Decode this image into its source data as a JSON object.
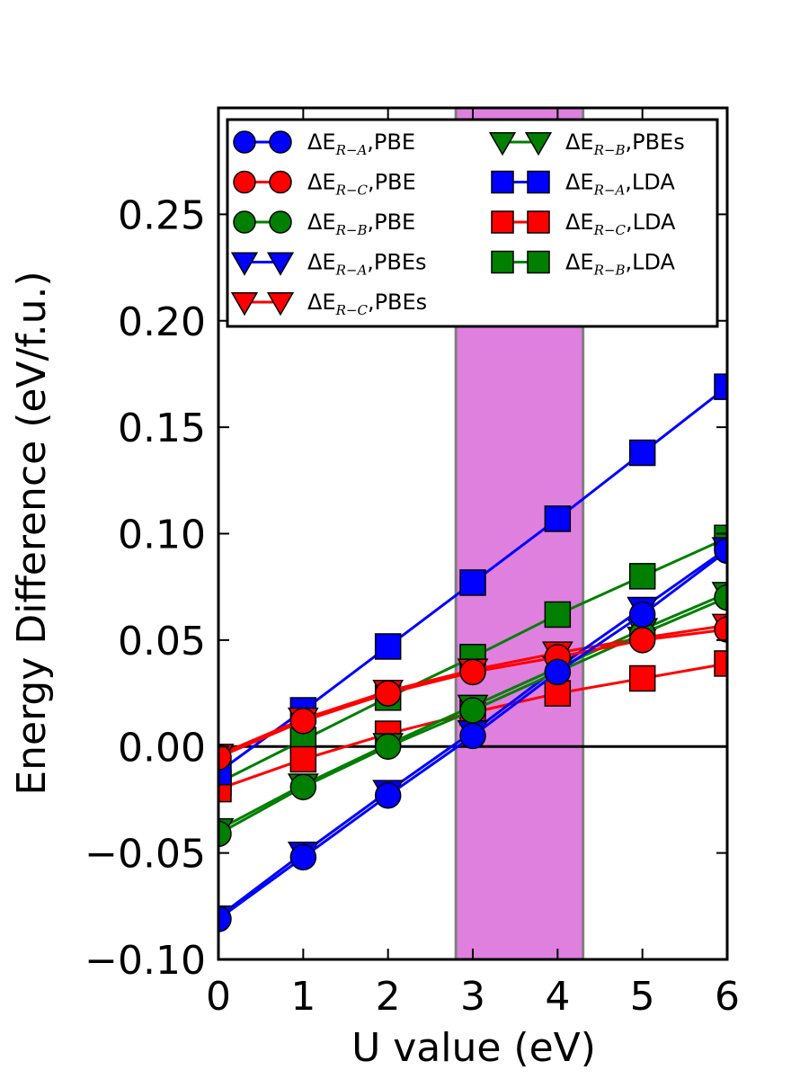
{
  "chart_data": {
    "type": "line",
    "title": "",
    "xlabel": "U value (eV)",
    "ylabel": "Energy Difference (eV/f.u.)",
    "xlim": [
      0,
      6
    ],
    "ylim": [
      -0.1,
      0.3
    ],
    "x_ticks": [
      "0",
      "1",
      "2",
      "3",
      "4",
      "5",
      "6"
    ],
    "y_ticks": [
      "−0.10",
      "−0.05",
      "0.00",
      "0.05",
      "0.10",
      "0.15",
      "0.20",
      "0.25"
    ],
    "grid": false,
    "legend_placement": "top",
    "highlight_band": {
      "x_range": [
        2.8,
        4.3
      ],
      "color": "#df80df"
    },
    "zero_line": true,
    "x": [
      0,
      1,
      2,
      3,
      4,
      5,
      6
    ],
    "series": [
      {
        "prefix": "ΔE",
        "subscript": "R−A",
        "suffix": ",PBE",
        "color": "#0000ff",
        "marker": "circle",
        "values": [
          -0.081,
          -0.052,
          -0.023,
          0.005,
          0.035,
          0.062,
          0.092
        ]
      },
      {
        "prefix": "ΔE",
        "subscript": "R−C",
        "suffix": ",PBE",
        "color": "#ff0000",
        "marker": "circle",
        "values": [
          -0.005,
          0.012,
          0.025,
          0.035,
          0.042,
          0.05,
          0.055
        ]
      },
      {
        "prefix": "ΔE",
        "subscript": "R−B",
        "suffix": ",PBE",
        "color": "#007f00",
        "marker": "circle",
        "values": [
          -0.041,
          -0.019,
          0.0,
          0.017,
          0.035,
          0.053,
          0.07
        ]
      },
      {
        "prefix": "ΔE",
        "subscript": "R−A",
        "suffix": ",PBEs",
        "color": "#0000ff",
        "marker": "triangle-down",
        "values": [
          -0.08,
          -0.05,
          -0.021,
          0.007,
          0.037,
          0.065,
          0.093
        ]
      },
      {
        "prefix": "ΔE",
        "subscript": "R−C",
        "suffix": ",PBEs",
        "color": "#ff0000",
        "marker": "triangle-down",
        "values": [
          -0.004,
          0.013,
          0.026,
          0.036,
          0.044,
          0.051,
          0.057
        ]
      },
      {
        "prefix": "ΔE",
        "subscript": "R−B",
        "suffix": ",PBEs",
        "color": "#007f00",
        "marker": "triangle-down",
        "values": [
          -0.039,
          -0.018,
          0.001,
          0.019,
          0.037,
          0.055,
          0.072
        ]
      },
      {
        "prefix": "ΔE",
        "subscript": "R−A",
        "suffix": ",LDA",
        "color": "#0000ff",
        "marker": "square",
        "values": [
          -0.012,
          0.017,
          0.047,
          0.077,
          0.107,
          0.138,
          0.169
        ]
      },
      {
        "prefix": "ΔE",
        "subscript": "R−C",
        "suffix": ",LDA",
        "color": "#ff0000",
        "marker": "square",
        "values": [
          -0.02,
          -0.006,
          0.006,
          0.016,
          0.025,
          0.032,
          0.039
        ]
      },
      {
        "prefix": "ΔE",
        "subscript": "R−B",
        "suffix": ",LDA",
        "color": "#007f00",
        "marker": "square",
        "values": [
          -0.017,
          0.003,
          0.023,
          0.042,
          0.062,
          0.08,
          0.098
        ]
      }
    ]
  }
}
